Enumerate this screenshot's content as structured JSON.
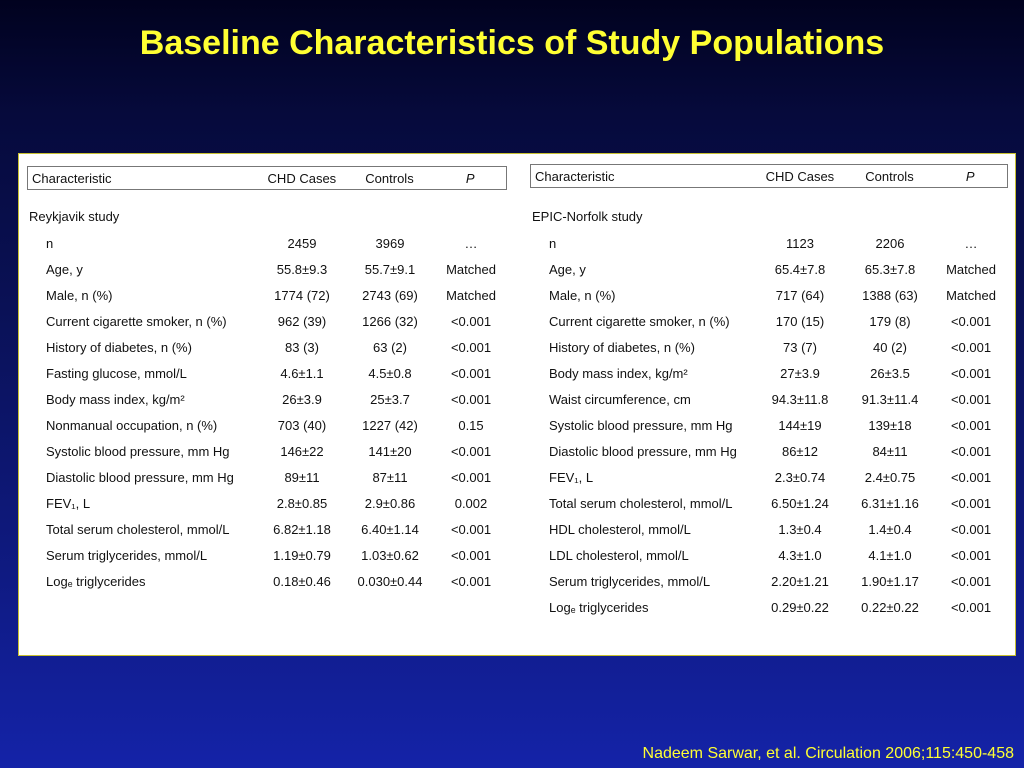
{
  "title": "Baseline Characteristics of Study Populations",
  "citation": "Nadeem Sarwar, et al. Circulation 2006;115:450-458",
  "tables": {
    "reykjavik": {
      "headers": {
        "characteristic": "Characteristic",
        "cases": "CHD Cases",
        "controls": "Controls",
        "p": "P"
      },
      "study_name": "Reykjavik study",
      "rows": [
        {
          "label": "n",
          "cases": "2459",
          "controls": "3969",
          "p": "…"
        },
        {
          "label": "Age, y",
          "cases": "55.8±9.3",
          "controls": "55.7±9.1",
          "p": "Matched"
        },
        {
          "label": "Male, n (%)",
          "cases": "1774 (72)",
          "controls": "2743 (69)",
          "p": "Matched"
        },
        {
          "label": "Current cigarette smoker, n (%)",
          "cases": "962 (39)",
          "controls": "1266 (32)",
          "p": "<0.001"
        },
        {
          "label": "History of diabetes, n (%)",
          "cases": "83 (3)",
          "controls": "63 (2)",
          "p": "<0.001"
        },
        {
          "label": "Fasting glucose, mmol/L",
          "cases": "4.6±1.1",
          "controls": "4.5±0.8",
          "p": "<0.001"
        },
        {
          "label": "Body mass index, kg/m²",
          "cases": "26±3.9",
          "controls": "25±3.7",
          "p": "<0.001"
        },
        {
          "label": "Nonmanual occupation, n (%)",
          "cases": "703 (40)",
          "controls": "1227 (42)",
          "p": "0.15"
        },
        {
          "label": "Systolic blood pressure, mm Hg",
          "cases": "146±22",
          "controls": "141±20",
          "p": "<0.001"
        },
        {
          "label": "Diastolic blood pressure, mm Hg",
          "cases": "89±11",
          "controls": "87±11",
          "p": "<0.001"
        },
        {
          "label": "FEV₁, L",
          "cases": "2.8±0.85",
          "controls": "2.9±0.86",
          "p": "0.002"
        },
        {
          "label": "Total serum cholesterol, mmol/L",
          "cases": "6.82±1.18",
          "controls": "6.40±1.14",
          "p": "<0.001"
        },
        {
          "label": "Serum triglycerides, mmol/L",
          "cases": "1.19±0.79",
          "controls": "1.03±0.62",
          "p": "<0.001"
        },
        {
          "label": "Logₑ triglycerides",
          "cases": "0.18±0.46",
          "controls": "0.030±0.44",
          "p": "<0.001"
        }
      ]
    },
    "epic": {
      "headers": {
        "characteristic": "Characteristic",
        "cases": "CHD Cases",
        "controls": "Controls",
        "p": "P"
      },
      "study_name": "EPIC-Norfolk study",
      "rows": [
        {
          "label": "n",
          "cases": "1123",
          "controls": "2206",
          "p": "…"
        },
        {
          "label": "Age, y",
          "cases": "65.4±7.8",
          "controls": "65.3±7.8",
          "p": "Matched"
        },
        {
          "label": "Male, n (%)",
          "cases": "717 (64)",
          "controls": "1388 (63)",
          "p": "Matched"
        },
        {
          "label": "Current cigarette smoker, n (%)",
          "cases": "170 (15)",
          "controls": "179 (8)",
          "p": "<0.001"
        },
        {
          "label": "History of diabetes, n (%)",
          "cases": "73 (7)",
          "controls": "40 (2)",
          "p": "<0.001"
        },
        {
          "label": "Body mass index, kg/m²",
          "cases": "27±3.9",
          "controls": "26±3.5",
          "p": "<0.001"
        },
        {
          "label": "Waist circumference, cm",
          "cases": "94.3±11.8",
          "controls": "91.3±11.4",
          "p": "<0.001"
        },
        {
          "label": "Systolic blood pressure, mm Hg",
          "cases": "144±19",
          "controls": "139±18",
          "p": "<0.001"
        },
        {
          "label": "Diastolic blood pressure, mm Hg",
          "cases": "86±12",
          "controls": "84±11",
          "p": "<0.001"
        },
        {
          "label": "FEV₁, L",
          "cases": "2.3±0.74",
          "controls": "2.4±0.75",
          "p": "<0.001"
        },
        {
          "label": "Total serum cholesterol, mmol/L",
          "cases": "6.50±1.24",
          "controls": "6.31±1.16",
          "p": "<0.001"
        },
        {
          "label": "HDL cholesterol, mmol/L",
          "cases": "1.3±0.4",
          "controls": "1.4±0.4",
          "p": "<0.001"
        },
        {
          "label": "LDL cholesterol, mmol/L",
          "cases": "4.3±1.0",
          "controls": "4.1±1.0",
          "p": "<0.001"
        },
        {
          "label": "Serum triglycerides, mmol/L",
          "cases": "2.20±1.21",
          "controls": "1.90±1.17",
          "p": "<0.001"
        },
        {
          "label": "Logₑ triglycerides",
          "cases": "0.29±0.22",
          "controls": "0.22±0.22",
          "p": "<0.001"
        }
      ]
    }
  }
}
